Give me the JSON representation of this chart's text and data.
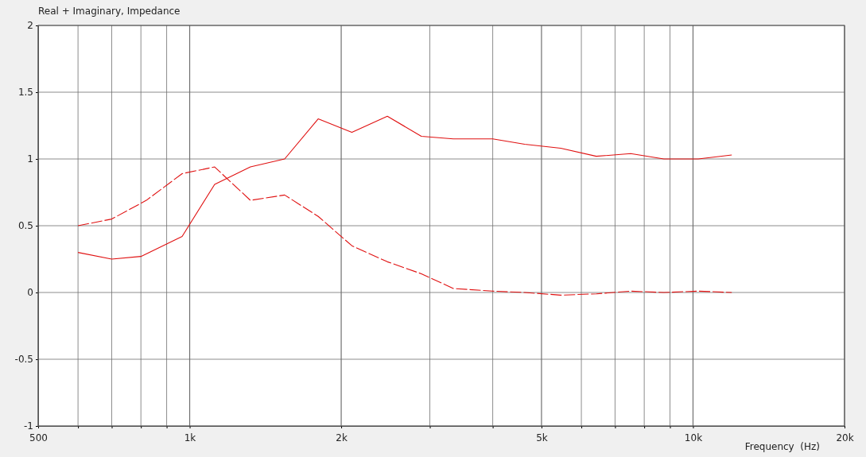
{
  "chart_data": {
    "type": "line",
    "title": "Real + Imaginary, Impedance",
    "xlabel": "Frequency  (Hz)",
    "log": "x",
    "grid": true,
    "marker": "none",
    "xlim": [
      500,
      20000
    ],
    "xticks": [
      {
        "value": 500,
        "label": "500"
      },
      {
        "value": 600,
        "label": null
      },
      {
        "value": 700,
        "label": null
      },
      {
        "value": 800,
        "label": null
      },
      {
        "value": 900,
        "label": null
      },
      {
        "value": 1000,
        "label": "1k"
      },
      {
        "value": 2000,
        "label": "2k"
      },
      {
        "value": 3000,
        "label": null
      },
      {
        "value": 4000,
        "label": null
      },
      {
        "value": 5000,
        "label": "5k"
      },
      {
        "value": 6000,
        "label": null
      },
      {
        "value": 7000,
        "label": null
      },
      {
        "value": 8000,
        "label": null
      },
      {
        "value": 9000,
        "label": null
      },
      {
        "value": 10000,
        "label": "10k"
      },
      {
        "value": 20000,
        "label": "20k"
      }
    ],
    "ylim": [
      -1,
      2
    ],
    "yticks": [
      -1,
      -0.5,
      0,
      0.5,
      1,
      1.5,
      2
    ],
    "series": [
      {
        "color": "#e01010",
        "line_style": "solid",
        "x": [
          600,
          700,
          800,
          966,
          1121,
          1320,
          1544,
          1800,
          2100,
          2470,
          2886,
          3340,
          4000,
          4630,
          5460,
          6425,
          7520,
          8750,
          10240,
          11940
        ],
        "values": [
          0.3,
          0.25,
          0.27,
          0.42,
          0.81,
          0.94,
          1.0,
          1.3,
          1.2,
          1.32,
          1.17,
          1.15,
          1.15,
          1.11,
          1.08,
          1.02,
          1.04,
          1.0,
          1.0,
          1.03
        ]
      },
      {
        "color": "#e01010",
        "line_style": "dashed",
        "x": [
          600,
          700,
          820,
          966,
          1121,
          1320,
          1544,
          1800,
          2100,
          2470,
          2886,
          3340,
          4000,
          4630,
          5460,
          6425,
          7520,
          8750,
          10240,
          11940
        ],
        "values": [
          0.5,
          0.55,
          0.69,
          0.89,
          0.94,
          0.69,
          0.73,
          0.57,
          0.35,
          0.23,
          0.14,
          0.03,
          0.01,
          0.0,
          -0.02,
          -0.01,
          0.01,
          0.0,
          0.01,
          0.0
        ]
      }
    ]
  }
}
